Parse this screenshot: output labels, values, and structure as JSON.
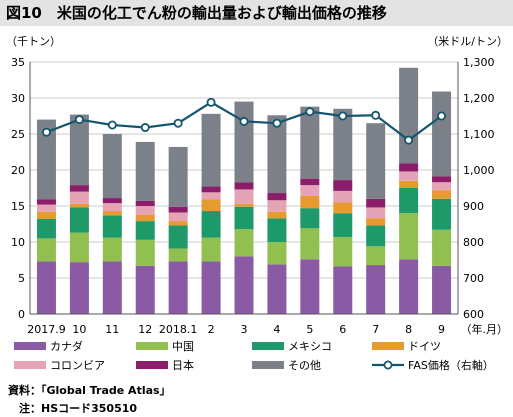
{
  "title": "図10　米国の化工でん粉の輸出量および輸出価格の推移",
  "source_note": "資料：「Global Trade Atlas」",
  "hs_note": "　注：HSコード350510",
  "chart_data": {
    "type": "bar",
    "stacked": true,
    "ylabel_left": "（千トン）",
    "ylabel_right": "（米ドル/トン）",
    "xlabel": "（年.月）",
    "ylim_left": [
      0,
      35
    ],
    "yticks_left": [
      "0",
      "5",
      "10",
      "15",
      "20",
      "25",
      "30",
      "35"
    ],
    "ylim_right": [
      600,
      1300
    ],
    "yticks_right": [
      "600",
      "700",
      "800",
      "900",
      "1,000",
      "1,100",
      "1,200",
      "1,300"
    ],
    "grid": true,
    "legend_position": "bottom",
    "categories": [
      "2017.9",
      "10",
      "11",
      "12",
      "2018.1",
      "2",
      "3",
      "4",
      "5",
      "6",
      "7",
      "8",
      "9"
    ],
    "series": [
      {
        "name": "カナダ",
        "color": "#8a5aa5",
        "values": [
          7.3,
          7.2,
          7.3,
          6.7,
          7.3,
          7.3,
          8.0,
          6.9,
          7.6,
          6.6,
          6.8,
          7.6,
          6.7
        ]
      },
      {
        "name": "中国",
        "color": "#92c050",
        "values": [
          3.2,
          4.1,
          3.3,
          3.6,
          1.8,
          3.3,
          3.8,
          3.1,
          4.3,
          4.1,
          2.6,
          6.4,
          5.0
        ]
      },
      {
        "name": "メキシコ",
        "color": "#1e9a6a",
        "values": [
          2.7,
          3.5,
          3.1,
          2.6,
          3.2,
          3.7,
          3.1,
          3.3,
          2.8,
          3.3,
          2.9,
          3.5,
          4.3
        ]
      },
      {
        "name": "ドイツ",
        "color": "#e79a30",
        "values": [
          1.0,
          0.5,
          0.6,
          0.9,
          0.6,
          1.6,
          0.4,
          0.9,
          1.7,
          1.5,
          1.0,
          1.0,
          1.2
        ]
      },
      {
        "name": "コロンビア",
        "color": "#e4a4b6",
        "values": [
          1.0,
          1.7,
          1.1,
          1.2,
          1.2,
          1.0,
          2.0,
          1.6,
          1.5,
          1.6,
          1.5,
          1.3,
          1.1
        ]
      },
      {
        "name": "日本",
        "color": "#8b1d6a",
        "values": [
          0.7,
          0.9,
          0.7,
          0.7,
          0.8,
          0.8,
          1.0,
          1.0,
          0.9,
          1.5,
          1.2,
          1.1,
          0.8
        ]
      },
      {
        "name": "その他",
        "color": "#7c8189",
        "values": [
          11.1,
          9.8,
          8.9,
          8.2,
          8.3,
          10.1,
          11.2,
          10.8,
          10.0,
          9.9,
          10.5,
          13.3,
          11.8
        ]
      }
    ],
    "line_series": {
      "name": "FAS価格（右軸）",
      "axis": "right",
      "color": "#15566e",
      "values": [
        1105,
        1140,
        1125,
        1118,
        1130,
        1188,
        1135,
        1130,
        1162,
        1150,
        1152,
        1083,
        1150
      ]
    }
  }
}
